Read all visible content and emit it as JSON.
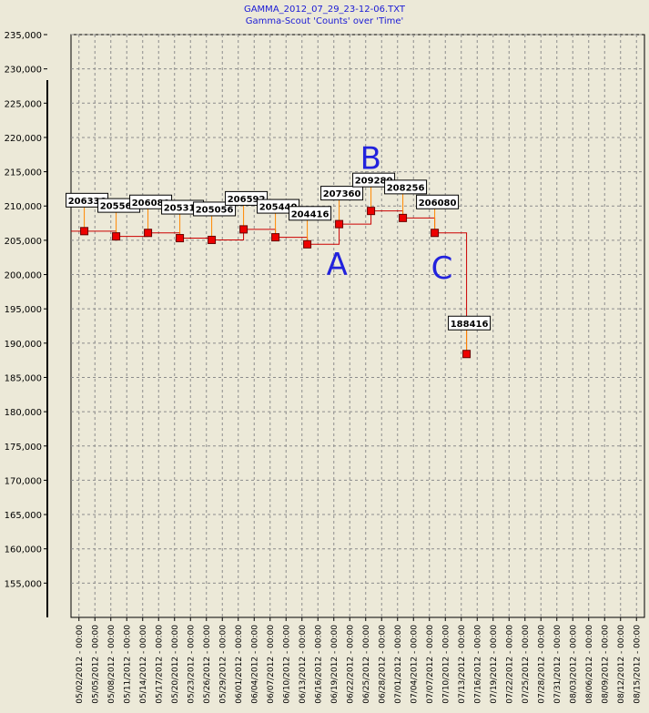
{
  "title": "GAMMA_2012_07_29_23-12-06.TXT",
  "subtitle": "Gamma-Scout 'Counts' over 'Time'",
  "colors": {
    "line": "#cc0000",
    "marker": "#ee0000",
    "marker_border": "#660000",
    "label_stem": "#ff8800",
    "annotation": "#2222dd",
    "plot_bg": "#ece9d8"
  },
  "chart_data": {
    "type": "line",
    "title": "GAMMA_2012_07_29_23-12-06.TXT",
    "subtitle": "Gamma-Scout 'Counts' over 'Time'",
    "xlabel": "",
    "ylabel": "",
    "ylim": [
      150000,
      235000
    ],
    "grid": true,
    "step": true,
    "y_ticks": [
      "155,000",
      "160,000",
      "165,000",
      "170,000",
      "175,000",
      "180,000",
      "185,000",
      "190,000",
      "195,000",
      "200,000",
      "205,000",
      "210,000",
      "215,000",
      "220,000",
      "225,000",
      "230,000",
      "235,000"
    ],
    "x_ticks": [
      "05/02/2012 - 00:00",
      "05/05/2012 - 00:00",
      "05/08/2012 - 00:00",
      "05/11/2012 - 00:00",
      "05/14/2012 - 00:00",
      "05/17/2012 - 00:00",
      "05/20/2012 - 00:00",
      "05/23/2012 - 00:00",
      "05/26/2012 - 00:00",
      "05/29/2012 - 00:00",
      "06/01/2012 - 00:00",
      "06/04/2012 - 00:00",
      "06/07/2012 - 00:00",
      "06/10/2012 - 00:00",
      "06/13/2012 - 00:00",
      "06/16/2012 - 00:00",
      "06/19/2012 - 00:00",
      "06/22/2012 - 00:00",
      "06/25/2012 - 00:00",
      "06/28/2012 - 00:00",
      "07/01/2012 - 00:00",
      "07/04/2012 - 00:00",
      "07/07/2012 - 00:00",
      "07/10/2012 - 00:00",
      "07/13/2012 - 00:00",
      "07/16/2012 - 00:00",
      "07/19/2012 - 00:00",
      "07/22/2012 - 00:00",
      "07/25/2012 - 00:00",
      "07/28/2012 - 00:00",
      "07/31/2012 - 00:00",
      "08/03/2012 - 00:00",
      "08/06/2012 - 00:00",
      "08/09/2012 - 00:00",
      "08/12/2012 - 00:00",
      "08/15/2012 - 00:00"
    ],
    "series": [
      {
        "points": [
          {
            "x": "05/03/2012",
            "y": 206336,
            "label": "206336"
          },
          {
            "x": "05/09/2012",
            "y": 205568,
            "label": "205568"
          },
          {
            "x": "05/15/2012",
            "y": 206080,
            "label": "206080"
          },
          {
            "x": "05/21/2012",
            "y": 205312,
            "label": "205312"
          },
          {
            "x": "05/27/2012",
            "y": 205056,
            "label": "205056"
          },
          {
            "x": "06/02/2012",
            "y": 206592,
            "label": "206592"
          },
          {
            "x": "06/08/2012",
            "y": 205440,
            "label": "205440"
          },
          {
            "x": "06/14/2012",
            "y": 204416,
            "label": "204416"
          },
          {
            "x": "06/20/2012",
            "y": 207360,
            "label": "207360"
          },
          {
            "x": "06/26/2012",
            "y": 209280,
            "label": "209280"
          },
          {
            "x": "07/02/2012",
            "y": 208256,
            "label": "208256"
          },
          {
            "x": "07/08/2012",
            "y": 206080,
            "label": "206080"
          },
          {
            "x": "07/14/2012",
            "y": 188416,
            "label": "188416"
          }
        ]
      }
    ],
    "annotations": [
      {
        "text": "A",
        "near": "06/20/2012"
      },
      {
        "text": "B",
        "near": "06/26/2012"
      },
      {
        "text": "C",
        "near": "07/08/2012"
      }
    ]
  }
}
